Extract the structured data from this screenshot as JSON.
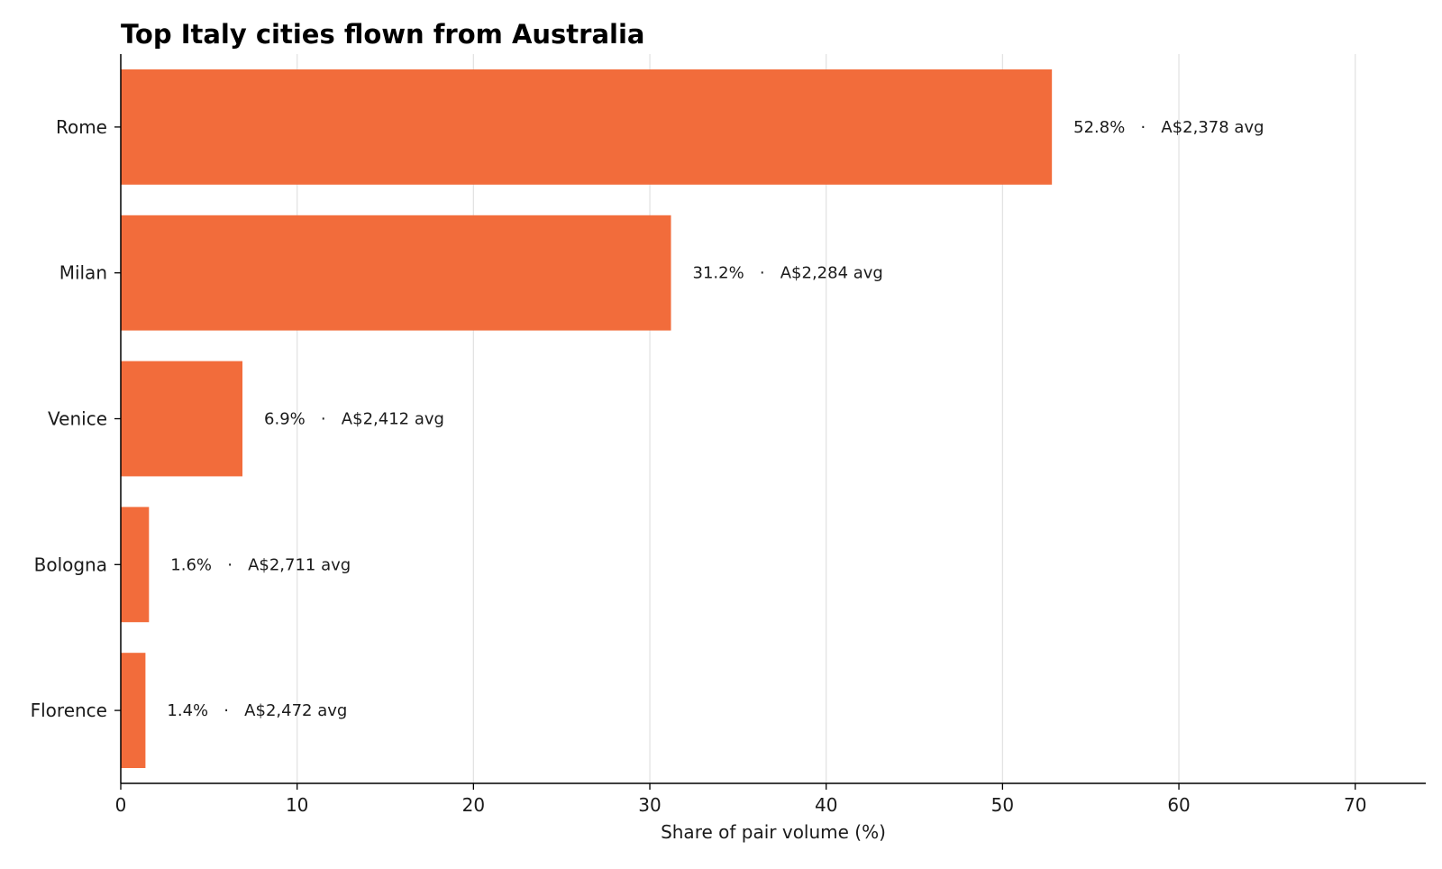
{
  "chart_data": {
    "type": "bar",
    "orientation": "horizontal",
    "title": "Top Italy cities flown from Australia",
    "xlabel": "Share of pair volume (%)",
    "ylabel": "",
    "categories": [
      "Rome",
      "Milan",
      "Venice",
      "Bologna",
      "Florence"
    ],
    "values": [
      52.8,
      31.2,
      6.9,
      1.6,
      1.4
    ],
    "avg_fares": [
      "A$2,378",
      "A$2,284",
      "A$2,412",
      "A$2,711",
      "A$2,472"
    ],
    "data_labels": [
      "52.8%   ·   A$2,378 avg",
      "31.2%   ·   A$2,284 avg",
      "6.9%   ·   A$2,412 avg",
      "1.6%   ·   A$2,711 avg",
      "1.4%   ·   A$2,472 avg"
    ],
    "xlim": [
      0,
      74
    ],
    "xticks": [
      0,
      10,
      20,
      30,
      40,
      50,
      60,
      70
    ],
    "xtick_labels": [
      "0",
      "10",
      "20",
      "30",
      "40",
      "50",
      "60",
      "70"
    ],
    "grid": "vertical",
    "bar_color": "#f26c3b",
    "grid_color": "#e3e3e3"
  }
}
